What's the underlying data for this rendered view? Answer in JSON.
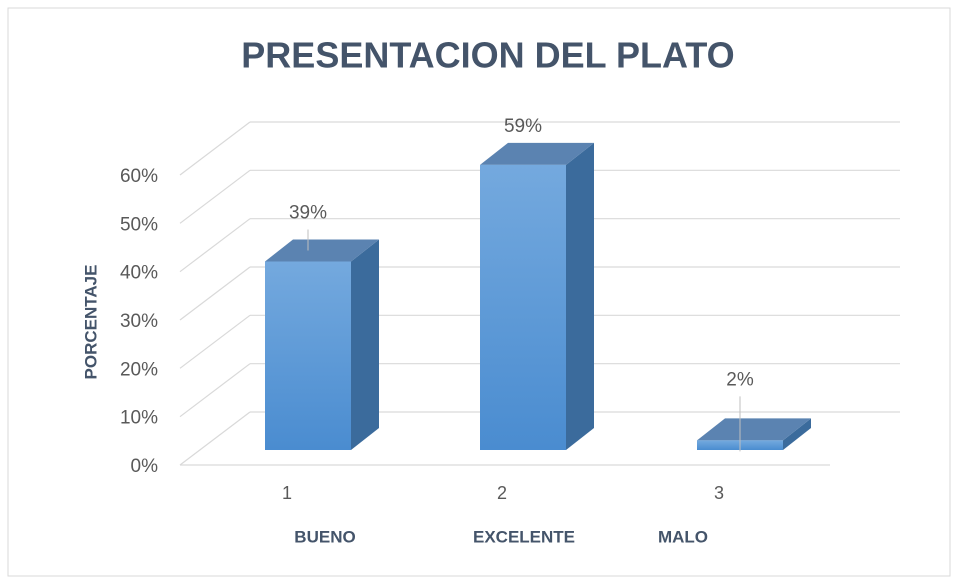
{
  "chart_data": {
    "type": "bar3d",
    "title": "PRESENTACION DEL PLATO",
    "y_label": "PORCENTAJE",
    "categories": [
      "1",
      "2",
      "3"
    ],
    "category_names": [
      "BUENO",
      "EXCELENTE",
      "MALO"
    ],
    "values": [
      39,
      59,
      2
    ],
    "value_labels": [
      "39%",
      "59%",
      "2%"
    ],
    "color": "#5b9bd5",
    "ylim": [
      0,
      60
    ],
    "yticks": [
      {
        "value": 0,
        "label": "0%"
      },
      {
        "value": 10,
        "label": "10%"
      },
      {
        "value": 20,
        "label": "20%"
      },
      {
        "value": 30,
        "label": "30%"
      },
      {
        "value": 40,
        "label": "40%"
      },
      {
        "value": 50,
        "label": "50%"
      },
      {
        "value": 60,
        "label": "60%"
      }
    ],
    "grid": true
  }
}
